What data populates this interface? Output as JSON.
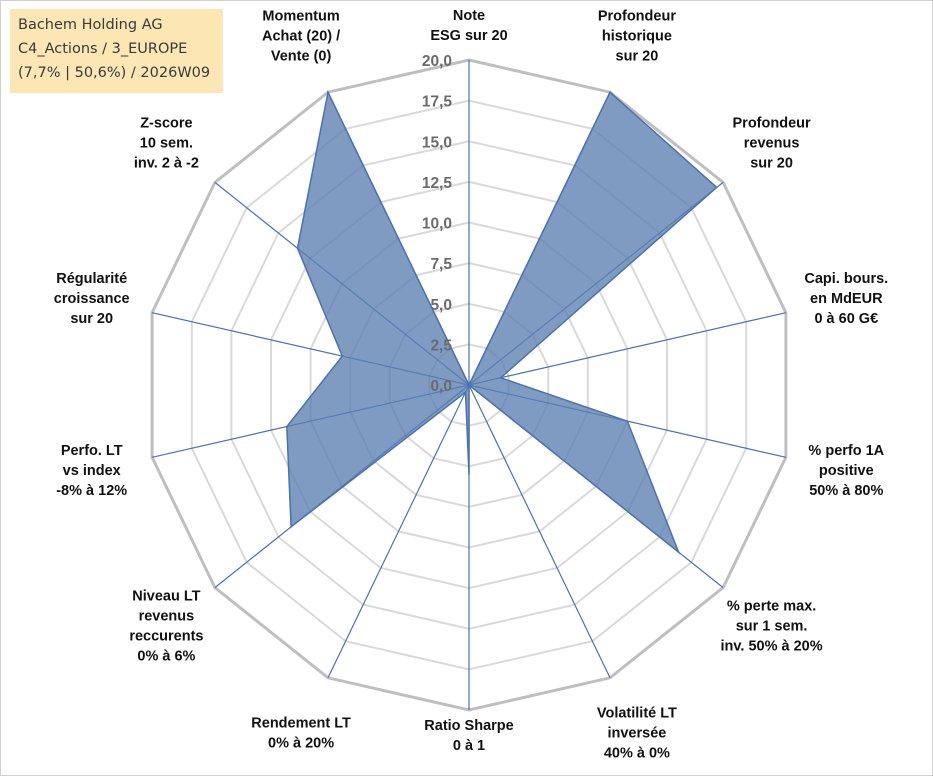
{
  "info": {
    "line1": "Bachem Holding AG",
    "line2": "C4_Actions / 3_EUROPE",
    "line3": "(7,7% | 50,6%) / 2026W09"
  },
  "colors": {
    "fill": "#5b7fb0",
    "fill_opacity": "0.78",
    "line": "#4a72b0",
    "grid_outer": "#bfbfbf",
    "grid_inner": "#d9d9d9",
    "info_bg": "#fbe6b4"
  },
  "chart_data": {
    "type": "radar",
    "title": "",
    "range": [
      0,
      20
    ],
    "tick_step": 2.5,
    "ticks": [
      "0,0",
      "2,5",
      "5,0",
      "7,5",
      "10,0",
      "12,5",
      "15,0",
      "17,5",
      "20,0"
    ],
    "categories": [
      [
        "Note",
        "ESG sur 20"
      ],
      [
        "Profondeur",
        "historique",
        "sur 20"
      ],
      [
        "Profondeur",
        "revenus",
        "sur 20"
      ],
      [
        "Capi. bours.",
        "en MdEUR",
        "0 à 60 G€"
      ],
      [
        "% perfo 1A",
        "positive",
        "50% à 80%"
      ],
      [
        "% perte max.",
        "sur 1 sem.",
        "inv. 50% à 20%"
      ],
      [
        "Volatilité LT",
        "inversée",
        "40% à 0%"
      ],
      [
        "Ratio Sharpe",
        "0 à 1"
      ],
      [
        "Rendement LT",
        "0% à 20%"
      ],
      [
        "Niveau LT",
        "revenus",
        "reccurents",
        "0% à 6%"
      ],
      [
        "Perfo. LT",
        "vs index",
        "-8% à 12%"
      ],
      [
        "Régularité",
        "croissance",
        "sur 20"
      ],
      [
        "Z-score",
        "10 sem.",
        "inv. 2 à -2"
      ],
      [
        "Momentum",
        "Achat (20) /",
        "Vente (0)"
      ]
    ],
    "series": [
      {
        "name": "Bachem Holding AG",
        "values": [
          0,
          20,
          19.5,
          2,
          10,
          16.5,
          0,
          5.5,
          0.5,
          14,
          11.5,
          8,
          13.5,
          20
        ]
      }
    ]
  }
}
